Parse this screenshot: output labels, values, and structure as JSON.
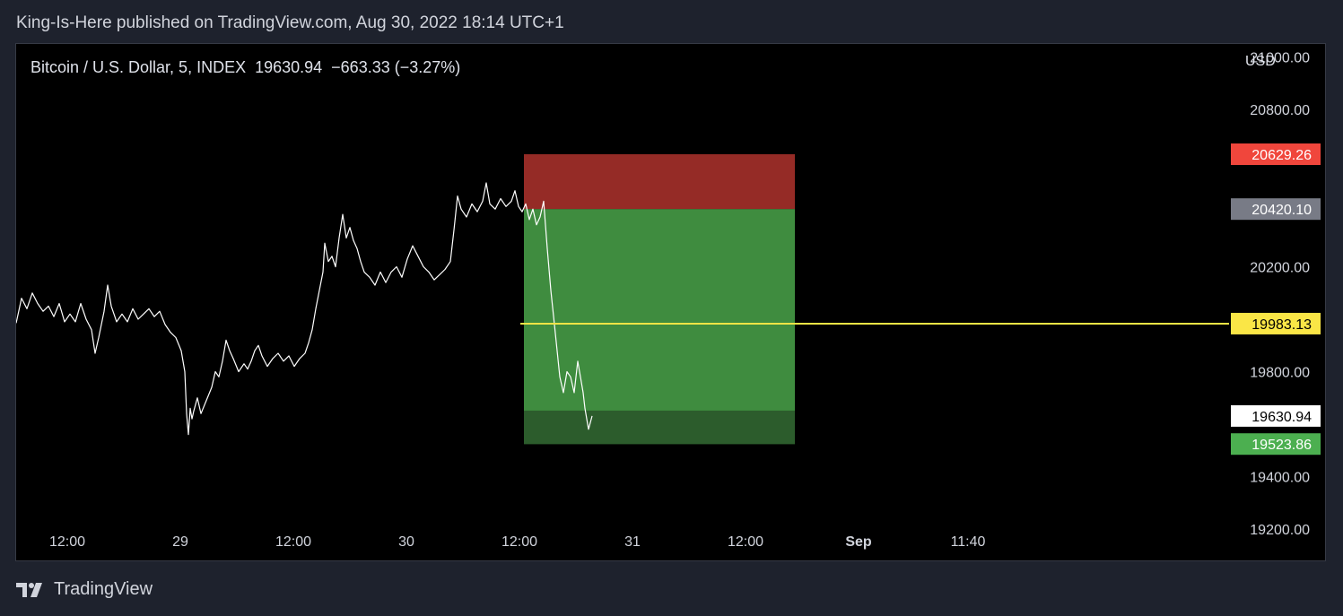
{
  "header": {
    "publish_line": "King-Is-Here published on TradingView.com, Aug 30, 2022 18:14 UTC+1"
  },
  "chart": {
    "symbol_line": "Bitcoin / U.S. Dollar, 5, INDEX  19630.94  −663.33 (−3.27%)",
    "currency": "USD"
  },
  "footer": {
    "brand": "TradingView",
    "logo_icon": "tradingview-logo-icon"
  },
  "colors": {
    "background": "#000000",
    "price_line": "#ffffff",
    "stop_zone": "#952b26",
    "target_zone": "#3f8c3f",
    "target_zone_dark": "#2c5c2c",
    "level_line": "#f0e445",
    "stop_label": "#f0463c",
    "entry_label": "#787b86",
    "target_label": "#4caf50",
    "level_label": "#fae646",
    "last_label": "#ffffff"
  },
  "chart_data": {
    "type": "line",
    "x_tick_labels": [
      "12:00",
      "29",
      "12:00",
      "30",
      "12:00",
      "31",
      "12:00",
      "Sep",
      "11:40"
    ],
    "y_tick_labels": [
      "21000.00",
      "20800.00",
      "20200.00",
      "19800.00",
      "19400.00",
      "19200.00"
    ],
    "ylim": [
      19080,
      21050
    ],
    "grid": false,
    "series": [
      {
        "points": [
          [
            0,
            19985
          ],
          [
            6,
            20080
          ],
          [
            12,
            20040
          ],
          [
            18,
            20100
          ],
          [
            24,
            20060
          ],
          [
            30,
            20030
          ],
          [
            36,
            20050
          ],
          [
            42,
            20010
          ],
          [
            48,
            20060
          ],
          [
            54,
            19990
          ],
          [
            60,
            20020
          ],
          [
            66,
            19990
          ],
          [
            72,
            20060
          ],
          [
            78,
            20000
          ],
          [
            84,
            19960
          ],
          [
            88,
            19870
          ],
          [
            92,
            19930
          ],
          [
            98,
            20030
          ],
          [
            102,
            20130
          ],
          [
            106,
            20050
          ],
          [
            112,
            19990
          ],
          [
            118,
            20020
          ],
          [
            124,
            19990
          ],
          [
            130,
            20040
          ],
          [
            136,
            20000
          ],
          [
            142,
            20020
          ],
          [
            148,
            20040
          ],
          [
            154,
            20010
          ],
          [
            160,
            20030
          ],
          [
            166,
            19980
          ],
          [
            172,
            19950
          ],
          [
            178,
            19930
          ],
          [
            184,
            19880
          ],
          [
            188,
            19800
          ],
          [
            190,
            19640
          ],
          [
            192,
            19560
          ],
          [
            194,
            19660
          ],
          [
            196,
            19620
          ],
          [
            198,
            19650
          ],
          [
            202,
            19700
          ],
          [
            206,
            19640
          ],
          [
            212,
            19690
          ],
          [
            218,
            19740
          ],
          [
            222,
            19800
          ],
          [
            226,
            19780
          ],
          [
            230,
            19840
          ],
          [
            234,
            19920
          ],
          [
            238,
            19880
          ],
          [
            242,
            19850
          ],
          [
            248,
            19800
          ],
          [
            254,
            19830
          ],
          [
            258,
            19810
          ],
          [
            262,
            19840
          ],
          [
            266,
            19880
          ],
          [
            270,
            19900
          ],
          [
            274,
            19860
          ],
          [
            280,
            19820
          ],
          [
            286,
            19850
          ],
          [
            292,
            19870
          ],
          [
            298,
            19840
          ],
          [
            304,
            19860
          ],
          [
            310,
            19820
          ],
          [
            316,
            19850
          ],
          [
            322,
            19870
          ],
          [
            326,
            19910
          ],
          [
            330,
            19960
          ],
          [
            334,
            20040
          ],
          [
            338,
            20110
          ],
          [
            342,
            20180
          ],
          [
            344,
            20290
          ],
          [
            348,
            20220
          ],
          [
            352,
            20240
          ],
          [
            356,
            20200
          ],
          [
            360,
            20310
          ],
          [
            364,
            20400
          ],
          [
            368,
            20310
          ],
          [
            372,
            20350
          ],
          [
            376,
            20300
          ],
          [
            380,
            20270
          ],
          [
            384,
            20220
          ],
          [
            388,
            20180
          ],
          [
            394,
            20160
          ],
          [
            400,
            20130
          ],
          [
            406,
            20180
          ],
          [
            412,
            20140
          ],
          [
            418,
            20180
          ],
          [
            424,
            20200
          ],
          [
            430,
            20160
          ],
          [
            436,
            20230
          ],
          [
            442,
            20280
          ],
          [
            448,
            20240
          ],
          [
            454,
            20200
          ],
          [
            460,
            20180
          ],
          [
            466,
            20150
          ],
          [
            472,
            20170
          ],
          [
            478,
            20190
          ],
          [
            484,
            20220
          ],
          [
            488,
            20340
          ],
          [
            492,
            20470
          ],
          [
            496,
            20420
          ],
          [
            502,
            20390
          ],
          [
            508,
            20440
          ],
          [
            514,
            20410
          ],
          [
            520,
            20450
          ],
          [
            524,
            20520
          ],
          [
            528,
            20440
          ],
          [
            534,
            20420
          ],
          [
            540,
            20460
          ],
          [
            546,
            20430
          ],
          [
            552,
            20450
          ],
          [
            556,
            20490
          ],
          [
            560,
            20430
          ],
          [
            564,
            20410
          ],
          [
            568,
            20440
          ],
          [
            572,
            20380
          ],
          [
            576,
            20420
          ],
          [
            580,
            20360
          ],
          [
            584,
            20390
          ],
          [
            588,
            20450
          ],
          [
            592,
            20270
          ],
          [
            596,
            20110
          ],
          [
            600,
            19980
          ],
          [
            603,
            19880
          ],
          [
            606,
            19780
          ],
          [
            610,
            19720
          ],
          [
            614,
            19800
          ],
          [
            618,
            19780
          ],
          [
            622,
            19720
          ],
          [
            626,
            19840
          ],
          [
            630,
            19760
          ],
          [
            632,
            19720
          ],
          [
            634,
            19660
          ],
          [
            636,
            19620
          ],
          [
            638,
            19580
          ],
          [
            642,
            19631
          ]
        ]
      }
    ],
    "annotations": {
      "position_tool": {
        "type": "long-position",
        "stop_price": 20629.26,
        "entry_price": 20420.1,
        "target_price": 19523.86,
        "x_start": 566,
        "x_end": 868
      },
      "horizontal_line": {
        "price": 19983.13,
        "x_start": 562
      },
      "price_labels": [
        {
          "text": "20629.26",
          "price": 20629.26,
          "role": "stop"
        },
        {
          "text": "20420.10",
          "price": 20420.1,
          "role": "entry"
        },
        {
          "text": "19983.13",
          "price": 19983.13,
          "role": "level"
        },
        {
          "text": "19630.94",
          "price": 19630.94,
          "role": "last"
        },
        {
          "text": "19523.86",
          "price": 19523.86,
          "role": "target"
        }
      ]
    }
  }
}
